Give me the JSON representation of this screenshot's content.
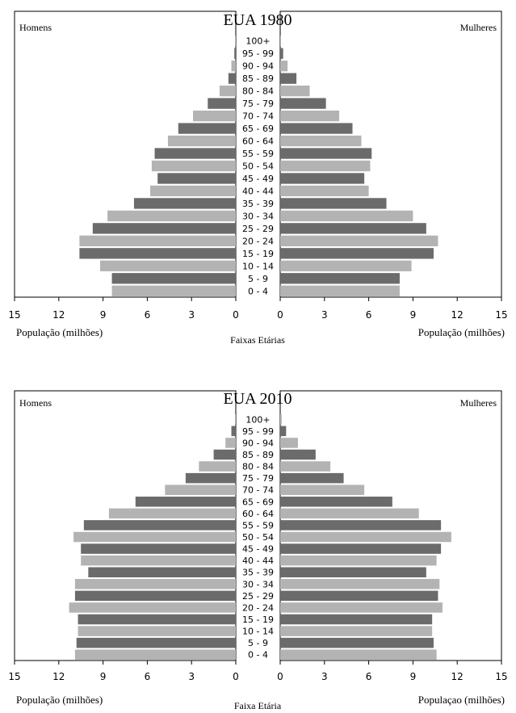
{
  "chart_data": [
    {
      "type": "bar",
      "title": "EUA 1980",
      "left_label": "Homens",
      "right_label": "Mulheres",
      "xlabel_left": "População (milhões)",
      "xlabel_right": "População (milhões)",
      "center_label": "Faixas Etárias",
      "xlim": [
        0,
        15
      ],
      "x_ticks": [
        "15",
        "12",
        "9",
        "6",
        "3",
        "0",
        "0",
        "3",
        "6",
        "9",
        "12",
        "15"
      ],
      "categories": [
        "100+",
        "95 - 99",
        "90 - 94",
        "85 - 89",
        "80 - 84",
        "75 - 79",
        "70 - 74",
        "65 - 69",
        "60 - 64",
        "55 - 59",
        "50 - 54",
        "45 - 49",
        "40 - 44",
        "35 - 39",
        "30 - 34",
        "25 - 29",
        "20 - 24",
        "15 - 19",
        "10 - 14",
        "5 - 9",
        "0 - 4"
      ],
      "series": [
        {
          "name": "Homens",
          "values": [
            0.05,
            0.1,
            0.3,
            0.5,
            1.1,
            1.9,
            2.9,
            3.9,
            4.6,
            5.5,
            5.7,
            5.3,
            5.8,
            6.9,
            8.7,
            9.7,
            10.6,
            10.6,
            9.2,
            8.4,
            8.4
          ]
        },
        {
          "name": "Mulheres",
          "values": [
            0.05,
            0.2,
            0.5,
            1.1,
            2.0,
            3.1,
            4.0,
            4.9,
            5.5,
            6.2,
            6.1,
            5.7,
            6.0,
            7.2,
            9.0,
            9.9,
            10.7,
            10.4,
            8.9,
            8.1,
            8.1
          ]
        }
      ]
    },
    {
      "type": "bar",
      "title": "EUA 2010",
      "left_label": "Homens",
      "right_label": "Mulheres",
      "xlabel_left": "População (milhões)",
      "xlabel_right": "Populaçao (milhões)",
      "center_label": "Faixa Etária",
      "xlim": [
        0,
        15
      ],
      "x_ticks": [
        "15",
        "12",
        "9",
        "6",
        "3",
        "0",
        "0",
        "3",
        "6",
        "9",
        "12",
        "15"
      ],
      "categories": [
        "100+",
        "95 - 99",
        "90 - 94",
        "85 - 89",
        "80 - 84",
        "75 - 79",
        "70 - 74",
        "65 - 69",
        "60 - 64",
        "55 - 59",
        "50 - 54",
        "45 - 49",
        "40 - 44",
        "35 - 39",
        "30 - 34",
        "25 - 29",
        "20 - 24",
        "15 - 19",
        "10 - 14",
        "5 - 9",
        "0 - 4"
      ],
      "series": [
        {
          "name": "Homens",
          "values": [
            0.05,
            0.3,
            0.7,
            1.5,
            2.5,
            3.4,
            4.8,
            6.8,
            8.6,
            10.3,
            11.0,
            10.5,
            10.5,
            10.0,
            10.9,
            10.9,
            11.3,
            10.7,
            10.7,
            10.8,
            10.9
          ]
        },
        {
          "name": "Mulheres",
          "values": [
            0.1,
            0.4,
            1.2,
            2.4,
            3.4,
            4.3,
            5.7,
            7.6,
            9.4,
            10.9,
            11.6,
            10.9,
            10.6,
            9.9,
            10.8,
            10.7,
            11.0,
            10.3,
            10.3,
            10.4,
            10.6
          ]
        }
      ]
    }
  ]
}
